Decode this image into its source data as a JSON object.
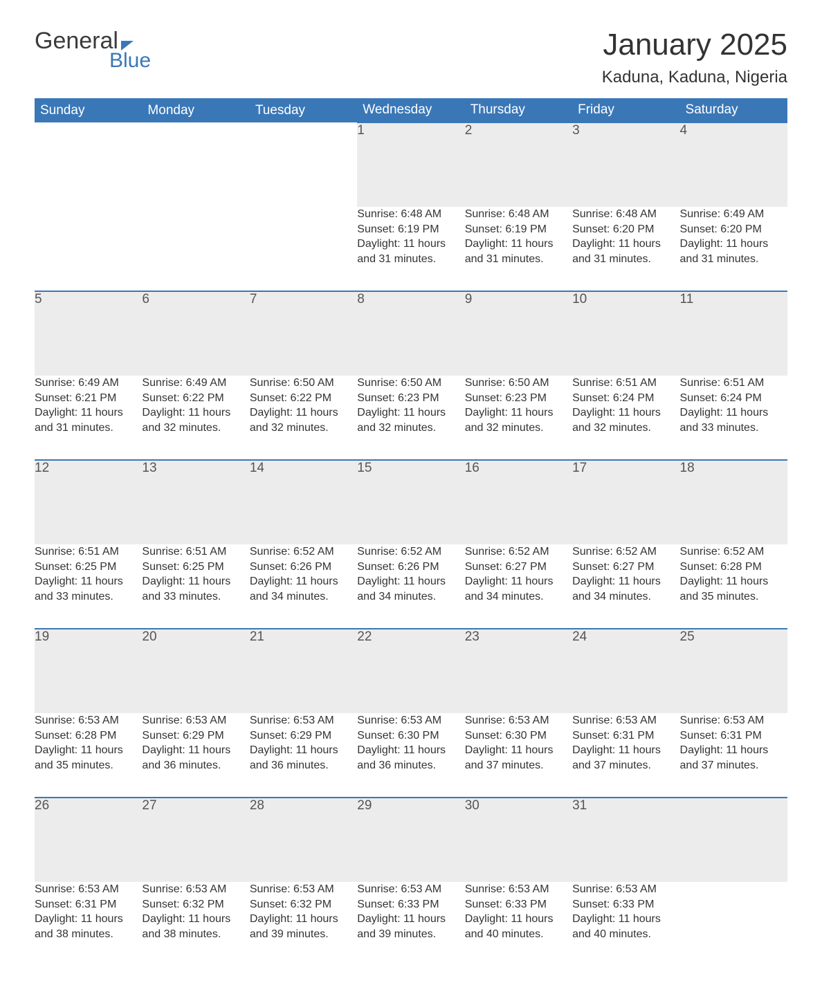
{
  "brand": {
    "general": "General",
    "blue": "Blue"
  },
  "title": "January 2025",
  "location": "Kaduna, Kaduna, Nigeria",
  "colors": {
    "header_bg": "#3a77b7",
    "header_text": "#ffffff",
    "daynum_bg": "#ececec",
    "week_divider": "#3a77b7",
    "body_text": "#333333",
    "page_bg": "#ffffff"
  },
  "weekday_headers": [
    "Sunday",
    "Monday",
    "Tuesday",
    "Wednesday",
    "Thursday",
    "Friday",
    "Saturday"
  ],
  "labels": {
    "sunrise": "Sunrise:",
    "sunset": "Sunset:",
    "daylight": "Daylight:"
  },
  "weeks": [
    [
      null,
      null,
      null,
      {
        "n": "1",
        "sunrise": "6:48 AM",
        "sunset": "6:19 PM",
        "daylight": "11 hours and 31 minutes."
      },
      {
        "n": "2",
        "sunrise": "6:48 AM",
        "sunset": "6:19 PM",
        "daylight": "11 hours and 31 minutes."
      },
      {
        "n": "3",
        "sunrise": "6:48 AM",
        "sunset": "6:20 PM",
        "daylight": "11 hours and 31 minutes."
      },
      {
        "n": "4",
        "sunrise": "6:49 AM",
        "sunset": "6:20 PM",
        "daylight": "11 hours and 31 minutes."
      }
    ],
    [
      {
        "n": "5",
        "sunrise": "6:49 AM",
        "sunset": "6:21 PM",
        "daylight": "11 hours and 31 minutes."
      },
      {
        "n": "6",
        "sunrise": "6:49 AM",
        "sunset": "6:22 PM",
        "daylight": "11 hours and 32 minutes."
      },
      {
        "n": "7",
        "sunrise": "6:50 AM",
        "sunset": "6:22 PM",
        "daylight": "11 hours and 32 minutes."
      },
      {
        "n": "8",
        "sunrise": "6:50 AM",
        "sunset": "6:23 PM",
        "daylight": "11 hours and 32 minutes."
      },
      {
        "n": "9",
        "sunrise": "6:50 AM",
        "sunset": "6:23 PM",
        "daylight": "11 hours and 32 minutes."
      },
      {
        "n": "10",
        "sunrise": "6:51 AM",
        "sunset": "6:24 PM",
        "daylight": "11 hours and 32 minutes."
      },
      {
        "n": "11",
        "sunrise": "6:51 AM",
        "sunset": "6:24 PM",
        "daylight": "11 hours and 33 minutes."
      }
    ],
    [
      {
        "n": "12",
        "sunrise": "6:51 AM",
        "sunset": "6:25 PM",
        "daylight": "11 hours and 33 minutes."
      },
      {
        "n": "13",
        "sunrise": "6:51 AM",
        "sunset": "6:25 PM",
        "daylight": "11 hours and 33 minutes."
      },
      {
        "n": "14",
        "sunrise": "6:52 AM",
        "sunset": "6:26 PM",
        "daylight": "11 hours and 34 minutes."
      },
      {
        "n": "15",
        "sunrise": "6:52 AM",
        "sunset": "6:26 PM",
        "daylight": "11 hours and 34 minutes."
      },
      {
        "n": "16",
        "sunrise": "6:52 AM",
        "sunset": "6:27 PM",
        "daylight": "11 hours and 34 minutes."
      },
      {
        "n": "17",
        "sunrise": "6:52 AM",
        "sunset": "6:27 PM",
        "daylight": "11 hours and 34 minutes."
      },
      {
        "n": "18",
        "sunrise": "6:52 AM",
        "sunset": "6:28 PM",
        "daylight": "11 hours and 35 minutes."
      }
    ],
    [
      {
        "n": "19",
        "sunrise": "6:53 AM",
        "sunset": "6:28 PM",
        "daylight": "11 hours and 35 minutes."
      },
      {
        "n": "20",
        "sunrise": "6:53 AM",
        "sunset": "6:29 PM",
        "daylight": "11 hours and 36 minutes."
      },
      {
        "n": "21",
        "sunrise": "6:53 AM",
        "sunset": "6:29 PM",
        "daylight": "11 hours and 36 minutes."
      },
      {
        "n": "22",
        "sunrise": "6:53 AM",
        "sunset": "6:30 PM",
        "daylight": "11 hours and 36 minutes."
      },
      {
        "n": "23",
        "sunrise": "6:53 AM",
        "sunset": "6:30 PM",
        "daylight": "11 hours and 37 minutes."
      },
      {
        "n": "24",
        "sunrise": "6:53 AM",
        "sunset": "6:31 PM",
        "daylight": "11 hours and 37 minutes."
      },
      {
        "n": "25",
        "sunrise": "6:53 AM",
        "sunset": "6:31 PM",
        "daylight": "11 hours and 37 minutes."
      }
    ],
    [
      {
        "n": "26",
        "sunrise": "6:53 AM",
        "sunset": "6:31 PM",
        "daylight": "11 hours and 38 minutes."
      },
      {
        "n": "27",
        "sunrise": "6:53 AM",
        "sunset": "6:32 PM",
        "daylight": "11 hours and 38 minutes."
      },
      {
        "n": "28",
        "sunrise": "6:53 AM",
        "sunset": "6:32 PM",
        "daylight": "11 hours and 39 minutes."
      },
      {
        "n": "29",
        "sunrise": "6:53 AM",
        "sunset": "6:33 PM",
        "daylight": "11 hours and 39 minutes."
      },
      {
        "n": "30",
        "sunrise": "6:53 AM",
        "sunset": "6:33 PM",
        "daylight": "11 hours and 40 minutes."
      },
      {
        "n": "31",
        "sunrise": "6:53 AM",
        "sunset": "6:33 PM",
        "daylight": "11 hours and 40 minutes."
      },
      null
    ]
  ]
}
